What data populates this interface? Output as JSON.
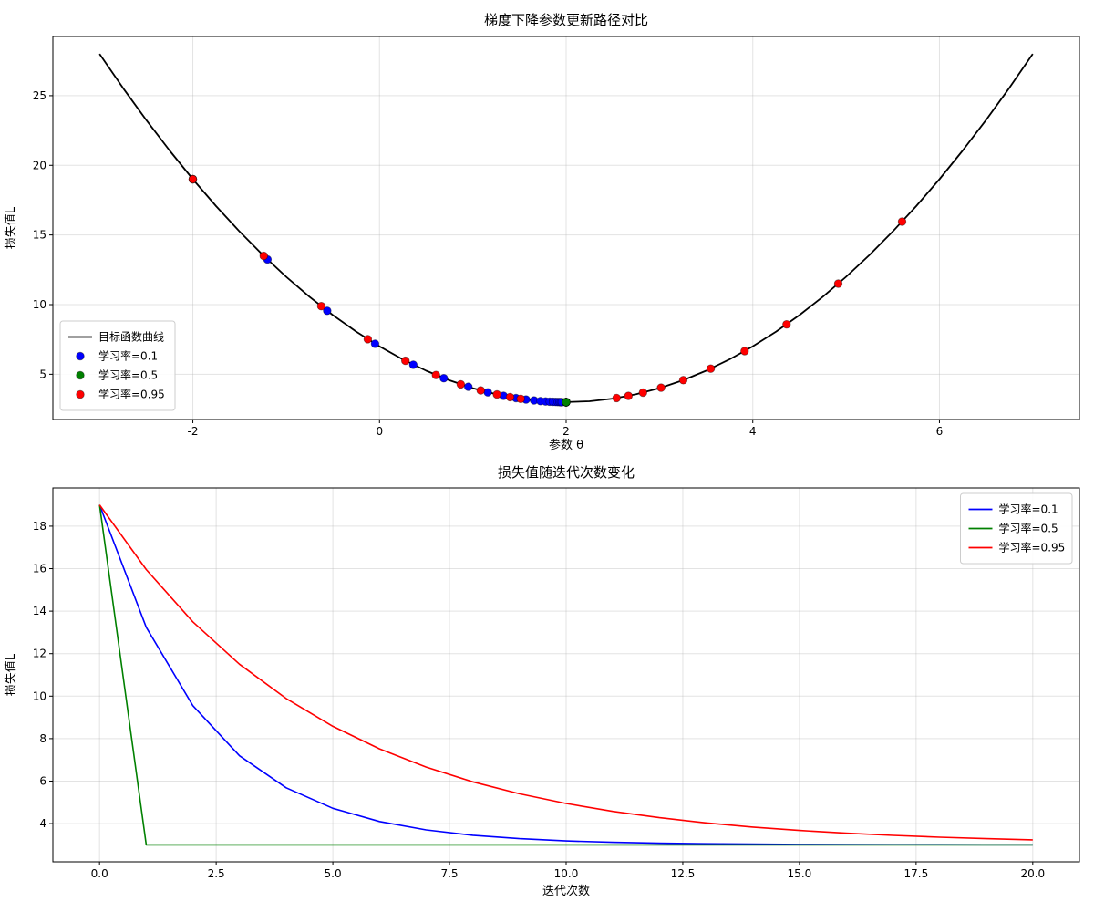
{
  "figure": {
    "background": "#ffffff",
    "series_colors": {
      "lr_0_1": "#0000ff",
      "lr_0_5": "#008000",
      "lr_0_95": "#ff0000",
      "curve": "#000000"
    }
  },
  "chart_data": [
    {
      "type": "scatter",
      "title": "梯度下降参数更新路径对比",
      "xlabel": "参数 θ",
      "ylabel": "损失值L",
      "xlim": [
        -3.5,
        7.5
      ],
      "ylim": [
        1.75,
        29.25
      ],
      "grid": true,
      "legend_position": "lower-left",
      "xticks": {
        "values": [
          -2,
          0,
          2,
          4,
          6
        ],
        "labels": [
          "-2",
          "0",
          "2",
          "4",
          "6"
        ]
      },
      "yticks": {
        "values": [
          5,
          10,
          15,
          20,
          25
        ],
        "labels": [
          "5",
          "10",
          "15",
          "20",
          "25"
        ]
      },
      "curve": {
        "name": "目标函数曲线",
        "color": "#000000",
        "x": [
          -3,
          -2.75,
          -2.5,
          -2.25,
          -2,
          -1.75,
          -1.5,
          -1.25,
          -1,
          -0.75,
          -0.5,
          -0.25,
          0,
          0.25,
          0.5,
          0.75,
          1,
          1.25,
          1.5,
          1.75,
          2,
          2.25,
          2.5,
          2.75,
          3,
          3.25,
          3.5,
          3.75,
          4,
          4.25,
          4.5,
          4.75,
          5,
          5.25,
          5.5,
          5.75,
          6,
          6.25,
          6.5,
          6.75,
          7
        ],
        "y": [
          28,
          25.5625,
          23.25,
          21.0625,
          19,
          17.0625,
          15.25,
          13.5625,
          12,
          10.5625,
          9.25,
          8.0625,
          7,
          6.0625,
          5.25,
          4.5625,
          4,
          3.5625,
          3.25,
          3.0625,
          3,
          3.0625,
          3.25,
          3.5625,
          4,
          4.5625,
          5.25,
          6.0625,
          7,
          8.0625,
          9.25,
          10.5625,
          12,
          13.5625,
          15.25,
          17.0625,
          19,
          21.0625,
          23.25,
          25.5625,
          28
        ]
      },
      "series": [
        {
          "name": "学习率=0.1",
          "color": "#0000ff",
          "mode": "markers",
          "x": [
            -2,
            -1.2,
            -0.56,
            -0.048,
            0.3616,
            0.6893,
            0.9514,
            1.1611,
            1.3289,
            1.4631,
            1.5705,
            1.6564,
            1.7251,
            1.7801,
            1.8241,
            1.8593,
            1.8874,
            1.9099,
            1.9279,
            1.9424,
            1.9539
          ],
          "y": [
            19,
            13.24,
            9.5536,
            7.1943,
            5.6844,
            4.718,
            4.0995,
            3.7037,
            3.4504,
            3.2882,
            3.1845,
            3.1181,
            3.0756,
            3.0484,
            3.031,
            3.0198,
            3.0127,
            3.0081,
            3.0052,
            3.0033,
            3.0021
          ]
        },
        {
          "name": "学习率=0.5",
          "color": "#008000",
          "mode": "markers",
          "x": [
            -2,
            2,
            2,
            2,
            2,
            2,
            2,
            2,
            2,
            2,
            2,
            2,
            2,
            2,
            2,
            2,
            2,
            2,
            2,
            2,
            2
          ],
          "y": [
            19,
            3,
            3,
            3,
            3,
            3,
            3,
            3,
            3,
            3,
            3,
            3,
            3,
            3,
            3,
            3,
            3,
            3,
            3,
            3,
            3
          ]
        },
        {
          "name": "学习率=0.95",
          "color": "#ff0000",
          "mode": "markers",
          "x": [
            -2,
            5.6,
            -1.24,
            4.916,
            -0.6244,
            4.362,
            -0.1258,
            3.9132,
            0.2781,
            3.5497,
            0.6053,
            3.2552,
            0.8703,
            3.0168,
            1.0849,
            2.8236,
            1.2588,
            2.6671,
            1.3996,
            2.5403,
            1.5137
          ],
          "y": [
            19,
            15.96,
            13.4976,
            11.5031,
            9.8875,
            8.5789,
            7.5189,
            6.6603,
            5.9648,
            5.4015,
            4.9452,
            4.5756,
            4.2762,
            4.0338,
            3.8374,
            3.6783,
            3.5494,
            3.445,
            3.3605,
            3.292,
            3.2365
          ]
        }
      ]
    },
    {
      "type": "line",
      "title": "损失值随迭代次数变化",
      "xlabel": "迭代次数",
      "ylabel": "损失值L",
      "xlim": [
        -1,
        21
      ],
      "ylim": [
        2.2,
        19.8
      ],
      "grid": true,
      "legend_position": "upper-right",
      "xticks": {
        "values": [
          0,
          2.5,
          5,
          7.5,
          10,
          12.5,
          15,
          17.5,
          20
        ],
        "labels": [
          "0.0",
          "2.5",
          "5.0",
          "7.5",
          "10.0",
          "12.5",
          "15.0",
          "17.5",
          "20.0"
        ]
      },
      "yticks": {
        "values": [
          4,
          6,
          8,
          10,
          12,
          14,
          16,
          18
        ],
        "labels": [
          "4",
          "6",
          "8",
          "10",
          "12",
          "14",
          "16",
          "18"
        ]
      },
      "x": [
        0,
        1,
        2,
        3,
        4,
        5,
        6,
        7,
        8,
        9,
        10,
        11,
        12,
        13,
        14,
        15,
        16,
        17,
        18,
        19,
        20
      ],
      "series": [
        {
          "name": "学习率=0.1",
          "color": "#0000ff",
          "mode": "line",
          "y": [
            19,
            13.24,
            9.5536,
            7.1943,
            5.6844,
            4.718,
            4.0995,
            3.7037,
            3.4504,
            3.2882,
            3.1845,
            3.1181,
            3.0756,
            3.0484,
            3.031,
            3.0198,
            3.0127,
            3.0081,
            3.0052,
            3.0033,
            3.0021
          ]
        },
        {
          "name": "学习率=0.5",
          "color": "#008000",
          "mode": "line",
          "y": [
            19,
            3,
            3,
            3,
            3,
            3,
            3,
            3,
            3,
            3,
            3,
            3,
            3,
            3,
            3,
            3,
            3,
            3,
            3,
            3,
            3
          ]
        },
        {
          "name": "学习率=0.95",
          "color": "#ff0000",
          "mode": "line",
          "y": [
            19,
            15.96,
            13.4976,
            11.5031,
            9.8875,
            8.5789,
            7.5189,
            6.6603,
            5.9648,
            5.4015,
            4.9452,
            4.5756,
            4.2762,
            4.0338,
            3.8374,
            3.6783,
            3.5494,
            3.445,
            3.3605,
            3.292,
            3.2365
          ]
        }
      ]
    }
  ]
}
